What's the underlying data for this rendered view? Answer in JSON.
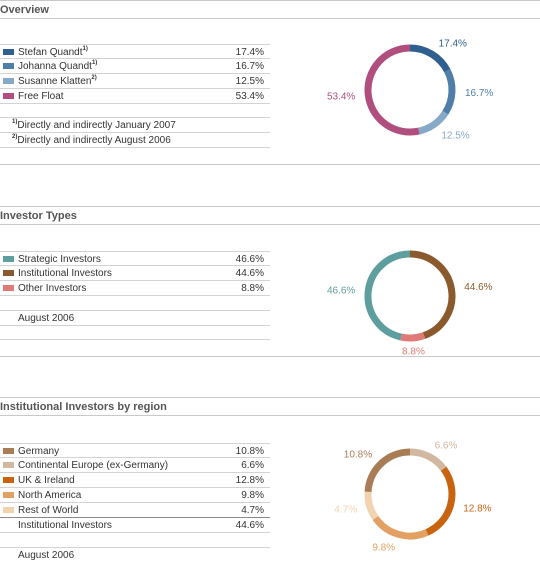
{
  "overview": {
    "title": "Overview",
    "rows": [
      {
        "label": "Stefan Quandt",
        "mark": "1)",
        "value": "17.4%",
        "color": "#2e5f8e"
      },
      {
        "label": "Johanna Quandt",
        "mark": "1)",
        "value": "16.7%",
        "color": "#4f7fa8"
      },
      {
        "label": "Susanne Klatten",
        "mark": "2)",
        "value": "12.5%",
        "color": "#86a9c8"
      },
      {
        "label": "Free Float",
        "mark": "",
        "value": "53.4%",
        "color": "#b04f7e"
      }
    ],
    "notes": [
      {
        "mark": "1)",
        "text": "Directly and indirectly January 2007"
      },
      {
        "mark": "2)",
        "text": "Directly and indirectly August 2006"
      }
    ]
  },
  "investor_types": {
    "title": "Investor Types",
    "rows": [
      {
        "label": "Strategic Investors",
        "value": "46.6%",
        "color": "#5f9e9e"
      },
      {
        "label": "Institutional Investors",
        "value": "44.6%",
        "color": "#8a5a2e"
      },
      {
        "label": "Other Investors",
        "value": "8.8%",
        "color": "#e07a78"
      }
    ],
    "date": "August 2006"
  },
  "by_region": {
    "title": "Institutional Investors by region",
    "rows": [
      {
        "label": "Germany",
        "value": "10.8%",
        "color": "#a87d56"
      },
      {
        "label": "Continental Europe (ex-Germany)",
        "value": "6.6%",
        "color": "#d2b8a0"
      },
      {
        "label": "UK & Ireland",
        "value": "12.8%",
        "color": "#c86410"
      },
      {
        "label": "North America",
        "value": "9.8%",
        "color": "#e3a063"
      },
      {
        "label": "Rest of World",
        "value": "4.7%",
        "color": "#f2d3b0"
      }
    ],
    "total": {
      "label": "Institutional Investors",
      "value": "44.6%"
    },
    "date": "August 2006"
  },
  "chart_data": [
    {
      "type": "pie",
      "categories": [
        "Stefan Quandt",
        "Johanna Quandt",
        "Susanne Klatten",
        "Free Float"
      ],
      "values": [
        17.4,
        16.7,
        12.5,
        53.4
      ],
      "labels": [
        "17.4%",
        "16.7%",
        "12.5%",
        "53.4%"
      ],
      "colors": [
        "#2e5f8e",
        "#4f7fa8",
        "#86a9c8",
        "#b04f7e"
      ]
    },
    {
      "type": "pie",
      "categories": [
        "Institutional Investors",
        "Other Investors",
        "Strategic Investors"
      ],
      "values": [
        44.6,
        8.8,
        46.6
      ],
      "labels": [
        "44.6%",
        "8.8%",
        "46.6%"
      ],
      "colors": [
        "#8a5a2e",
        "#e07a78",
        "#5f9e9e"
      ]
    },
    {
      "type": "pie",
      "categories": [
        "Continental Europe (ex-Germany)",
        "UK & Ireland",
        "North America",
        "Rest of World",
        "Germany"
      ],
      "values": [
        6.6,
        12.8,
        9.8,
        4.7,
        10.8
      ],
      "labels": [
        "6.6%",
        "12.8%",
        "9.8%",
        "4.7%",
        "10.8%"
      ],
      "colors": [
        "#d2b8a0",
        "#c86410",
        "#e3a063",
        "#f2d3b0",
        "#a87d56"
      ]
    }
  ]
}
